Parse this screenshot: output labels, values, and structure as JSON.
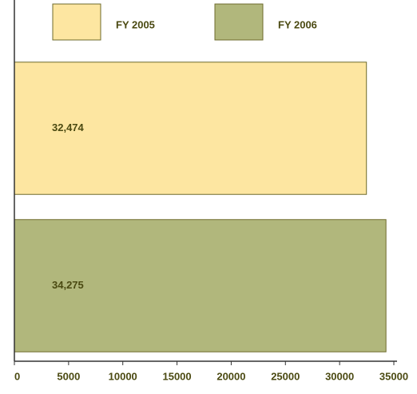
{
  "chart_data": {
    "type": "bar",
    "orientation": "horizontal",
    "series": [
      {
        "name": "FY 2005",
        "color": "#fde6a1",
        "values": [
          32474
        ],
        "value_labels": [
          "32,474"
        ]
      },
      {
        "name": "FY 2006",
        "color": "#b1b77c",
        "values": [
          34275
        ],
        "value_labels": [
          "34,275"
        ]
      }
    ],
    "xlim": [
      0,
      35000
    ],
    "xticks": [
      0,
      5000,
      10000,
      15000,
      20000,
      25000,
      30000,
      35000
    ],
    "legend": "top"
  }
}
